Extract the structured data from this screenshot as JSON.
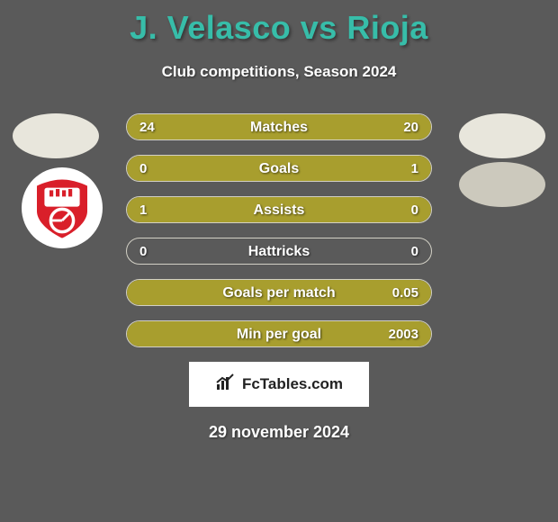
{
  "title": "J. Velasco vs Rioja",
  "subtitle": "Club competitions, Season 2024",
  "date": "29 november 2024",
  "brand": "FcTables.com",
  "colors": {
    "title": "#37bda9",
    "background": "#5a5a5a",
    "bar_fill": "#a89e2e",
    "bar_border": "#d2d0c5",
    "text": "#ffffff",
    "badge_red": "#d91f2a",
    "badge_bg": "#ffffff",
    "avatar_bg": "#e8e6dc"
  },
  "bars": [
    {
      "label": "Matches",
      "left_val": "24",
      "right_val": "20",
      "left_pct": 54.5,
      "right_pct": 45.5
    },
    {
      "label": "Goals",
      "left_val": "0",
      "right_val": "1",
      "left_pct": 0,
      "right_pct": 100
    },
    {
      "label": "Assists",
      "left_val": "1",
      "right_val": "0",
      "left_pct": 100,
      "right_pct": 0
    },
    {
      "label": "Hattricks",
      "left_val": "0",
      "right_val": "0",
      "left_pct": 0,
      "right_pct": 0
    },
    {
      "label": "Goals per match",
      "left_val": "",
      "right_val": "0.05",
      "left_pct": 0,
      "right_pct": 100
    },
    {
      "label": "Min per goal",
      "left_val": "",
      "right_val": "2003",
      "left_pct": 0,
      "right_pct": 100
    }
  ]
}
